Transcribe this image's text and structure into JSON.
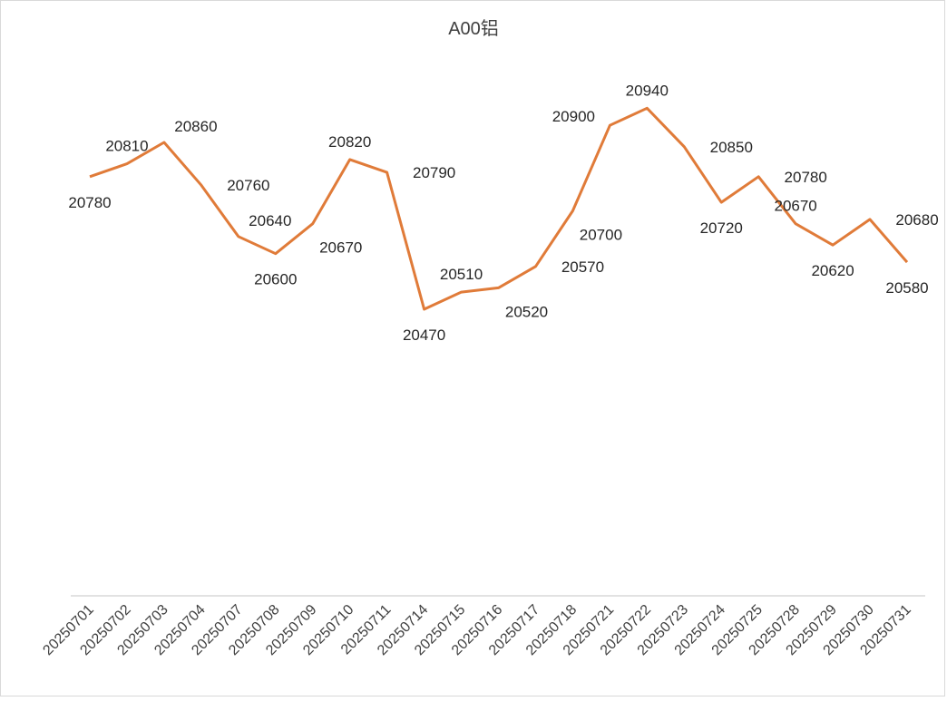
{
  "chart_data": {
    "type": "line",
    "title": "A00铝",
    "xlabel": "",
    "ylabel": "",
    "categories": [
      "20250701",
      "20250702",
      "20250703",
      "20250704",
      "20250707",
      "20250708",
      "20250709",
      "20250710",
      "20250711",
      "20250714",
      "20250715",
      "20250716",
      "20250717",
      "20250718",
      "20250721",
      "20250722",
      "20250723",
      "20250724",
      "20250725",
      "20250728",
      "20250729",
      "20250730",
      "20250731"
    ],
    "series": [
      {
        "name": "A00铝",
        "values": [
          20780,
          20810,
          20860,
          20760,
          20640,
          20600,
          20670,
          20820,
          20790,
          20470,
          20510,
          20520,
          20570,
          20700,
          20900,
          20940,
          20850,
          20720,
          20780,
          20670,
          20620,
          20680,
          20580
        ]
      }
    ],
    "label_placement": [
      "below",
      "above",
      "above-right",
      "right",
      "above-right",
      "below",
      "below-right",
      "above",
      "right",
      "below",
      "above",
      "below-right",
      "right",
      "below-right",
      "above-left",
      "above",
      "right",
      "below",
      "right",
      "above",
      "below",
      "right",
      "below"
    ],
    "ylim": [
      19800,
      21000
    ],
    "grid": false,
    "legend": "none",
    "colors": {
      "line": "#E07B39",
      "drop_line": "#7FA7C9",
      "axis": "#d9d9d9",
      "text": "#404040"
    }
  }
}
